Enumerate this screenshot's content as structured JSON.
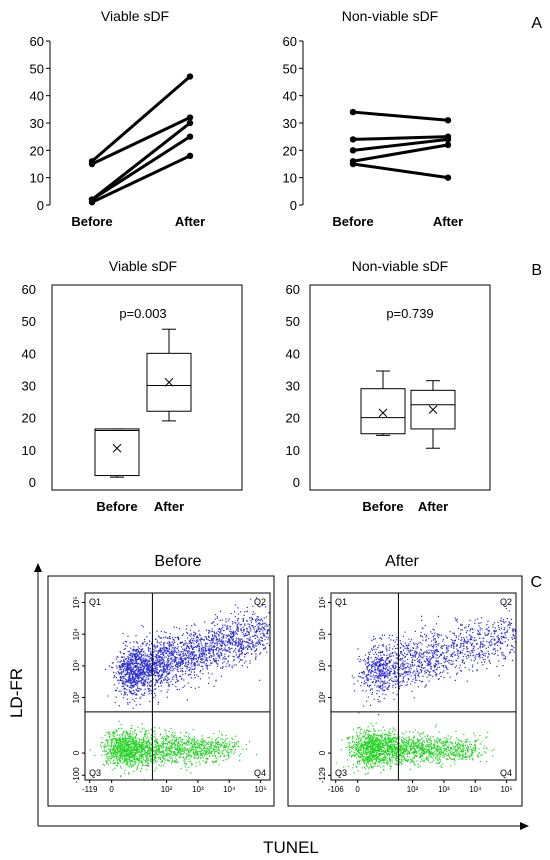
{
  "panel_labels": {
    "a": "A",
    "b": "B",
    "c": "C"
  },
  "chart_data": [
    {
      "type": "line",
      "panel": "A",
      "title": "Viable sDF",
      "categories": [
        "Before",
        "After"
      ],
      "ylim": [
        0,
        60
      ],
      "yticks": [
        0,
        10,
        20,
        30,
        40,
        50,
        60
      ],
      "grid": false,
      "series": [
        {
          "values": [
            16,
            47
          ]
        },
        {
          "values": [
            15,
            32
          ]
        },
        {
          "values": [
            2,
            30
          ]
        },
        {
          "values": [
            2,
            25
          ]
        },
        {
          "values": [
            1,
            18
          ]
        }
      ]
    },
    {
      "type": "line",
      "panel": "A",
      "title": "Non-viable sDF",
      "categories": [
        "Before",
        "After"
      ],
      "ylim": [
        0,
        60
      ],
      "yticks": [
        0,
        10,
        20,
        30,
        40,
        50,
        60
      ],
      "grid": false,
      "series": [
        {
          "values": [
            34,
            31
          ]
        },
        {
          "values": [
            24,
            25
          ]
        },
        {
          "values": [
            20,
            24
          ]
        },
        {
          "values": [
            16,
            22
          ]
        },
        {
          "values": [
            15,
            10
          ]
        }
      ]
    },
    {
      "type": "box",
      "panel": "B",
      "title": "Viable sDF",
      "annotation": "p=0.003",
      "categories": [
        "Before",
        "After"
      ],
      "ylim": [
        0,
        60
      ],
      "yticks": [
        0,
        10,
        20,
        30,
        40,
        50,
        60
      ],
      "grid": false,
      "boxes": [
        {
          "min": 1.5,
          "q1": 2,
          "median": 16,
          "q3": 16.5,
          "max": 16.5,
          "mean": 10.5
        },
        {
          "min": 19,
          "q1": 22,
          "median": 30,
          "q3": 40,
          "max": 47.5,
          "mean": 31
        }
      ]
    },
    {
      "type": "box",
      "panel": "B",
      "title": "Non-viable sDF",
      "annotation": "p=0.739",
      "categories": [
        "Before",
        "After"
      ],
      "ylim": [
        0,
        60
      ],
      "yticks": [
        0,
        10,
        20,
        30,
        40,
        50,
        60
      ],
      "grid": false,
      "boxes": [
        {
          "min": 14.5,
          "q1": 15,
          "median": 20,
          "q3": 29,
          "max": 34.5,
          "mean": 21.5
        },
        {
          "min": 10.5,
          "q1": 16.5,
          "median": 24,
          "q3": 28.5,
          "max": 31.5,
          "mean": 22.5
        }
      ]
    },
    {
      "type": "scatter",
      "panel": "C",
      "subtype": "flow-cytometry-dot-plot",
      "xlabel": "TUNEL",
      "ylabel": "LD-FR",
      "panels": [
        {
          "title": "Before",
          "quadrants": [
            "Q1",
            "Q2",
            "Q3",
            "Q4"
          ],
          "x_tick_labels": [
            "-119",
            "0",
            "10²",
            "10³",
            "10⁴",
            "10⁵"
          ],
          "y_tick_labels": [
            "-100",
            "0",
            "10²",
            "10³",
            "10⁴",
            "10⁵"
          ],
          "populations": [
            {
              "color": "#2b2bd9",
              "count": 2400,
              "center_log": [
                2.1,
                3.2
              ],
              "spread": [
                0.6,
                0.4
              ]
            },
            {
              "color": "#22d422",
              "count": 1800,
              "center_log": [
                0.8,
                0.4
              ],
              "spread": [
                0.7,
                0.3
              ]
            }
          ]
        },
        {
          "title": "After",
          "quadrants": [
            "Q1",
            "Q2",
            "Q3",
            "Q4"
          ],
          "x_tick_labels": [
            "-106",
            "0",
            "10²",
            "10³",
            "10⁴",
            "10⁵"
          ],
          "y_tick_labels": [
            "-129",
            "0",
            "10²",
            "10³",
            "10⁴",
            "10⁵"
          ],
          "populations": [
            {
              "color": "#2b2bd9",
              "count": 1400,
              "center_log": [
                2.4,
                3.1
              ],
              "spread": [
                0.8,
                0.4
              ]
            },
            {
              "color": "#22d422",
              "count": 1800,
              "center_log": [
                0.9,
                0.4
              ],
              "spread": [
                0.8,
                0.3
              ]
            }
          ]
        }
      ]
    }
  ]
}
